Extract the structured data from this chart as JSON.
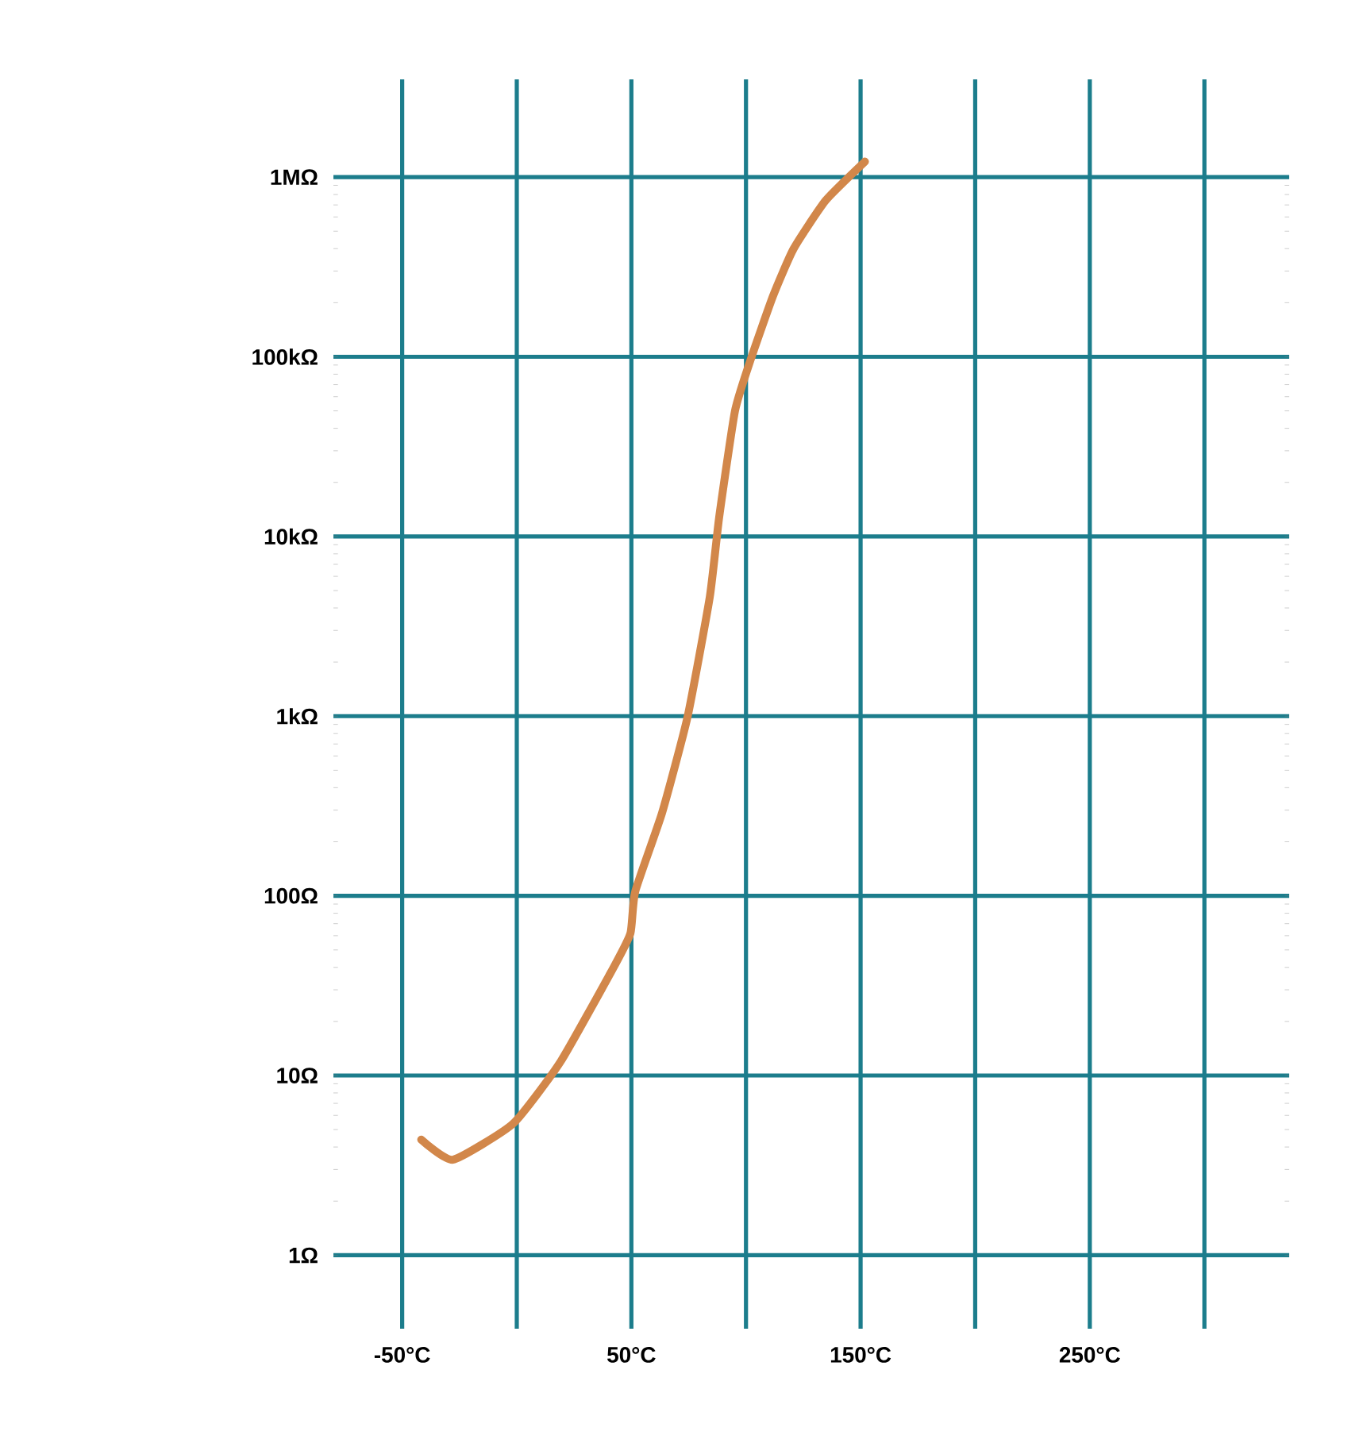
{
  "chart_data": {
    "type": "line",
    "color": "#d2874a",
    "x": [
      -41.7,
      -27.9,
      -1.6,
      19.2,
      42.7,
      49.6,
      51.7,
      63.4,
      74.5,
      84.2,
      88.3,
      95.2,
      102.1,
      111.8,
      120.8,
      134.7,
      151.9
    ],
    "values": [
      4.4,
      3.4,
      5.4,
      12,
      41,
      62,
      106,
      290,
      990,
      4600,
      12800,
      50000,
      97000,
      218000,
      400000,
      740000,
      1220000
    ],
    "xlim": [
      -80,
      337
    ],
    "ylim": [
      0.39,
      3500000
    ],
    "xticks": [
      {
        "value": -50,
        "label": "-50°C"
      },
      {
        "value": 0,
        "label": null
      },
      {
        "value": 50,
        "label": "50°C"
      },
      {
        "value": 100,
        "label": null
      },
      {
        "value": 150,
        "label": "150°C"
      },
      {
        "value": 200,
        "label": null
      },
      {
        "value": 250,
        "label": "250°C"
      },
      {
        "value": 300,
        "label": null
      }
    ],
    "yticks": [
      {
        "value": 1,
        "label": "1Ω"
      },
      {
        "value": 10,
        "label": "10Ω"
      },
      {
        "value": 100,
        "label": "100Ω"
      },
      {
        "value": 1000,
        "label": "1kΩ"
      },
      {
        "value": 10000,
        "label": "10kΩ"
      },
      {
        "value": 100000,
        "label": "100kΩ"
      },
      {
        "value": 1000000,
        "label": "1MΩ"
      }
    ],
    "log": "y",
    "grid": true
  }
}
